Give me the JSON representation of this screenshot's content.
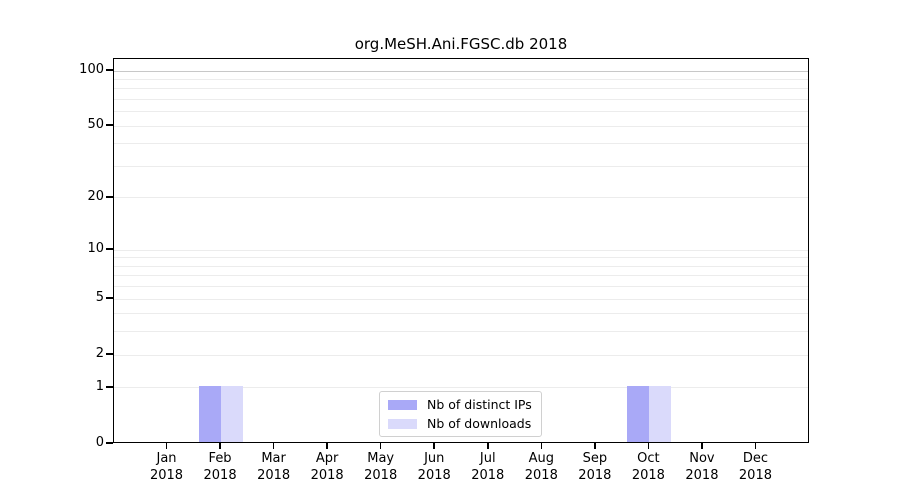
{
  "chart_data": {
    "type": "bar",
    "title": "org.MeSH.Ani.FGSC.db 2018",
    "categories": [
      "Jan",
      "Feb",
      "Mar",
      "Apr",
      "May",
      "Jun",
      "Jul",
      "Aug",
      "Sep",
      "Oct",
      "Nov",
      "Dec"
    ],
    "tick_year": "2018",
    "series": [
      {
        "name": "Nb of distinct IPs",
        "color": "#a9a9f7",
        "values": [
          0,
          1,
          0,
          0,
          0,
          0,
          0,
          0,
          0,
          1,
          0,
          0
        ]
      },
      {
        "name": "Nb of downloads",
        "color": "#dadafb",
        "values": [
          0,
          1,
          0,
          0,
          0,
          0,
          0,
          0,
          0,
          1,
          0,
          0
        ]
      }
    ],
    "xlabel": "",
    "ylabel": "",
    "yscale": "log1p",
    "yticks": [
      0,
      1,
      2,
      5,
      10,
      20,
      50,
      100
    ],
    "grid_values": [
      1,
      2,
      3,
      4,
      5,
      6,
      7,
      8,
      9,
      10,
      20,
      30,
      40,
      50,
      60,
      70,
      80,
      90,
      100
    ],
    "ylim": [
      0,
      116
    ],
    "grid": true,
    "legend_position": "bottom-center"
  },
  "colors": {
    "background": "#ffffff",
    "axis": "#000000",
    "text": "#000000",
    "grid_minor": "#ececec",
    "grid_top": "#c8c8c8",
    "bar_distinct_ips": "#a9a9f7",
    "bar_downloads": "#dadafb",
    "legend_border": "#d0d0d0"
  }
}
